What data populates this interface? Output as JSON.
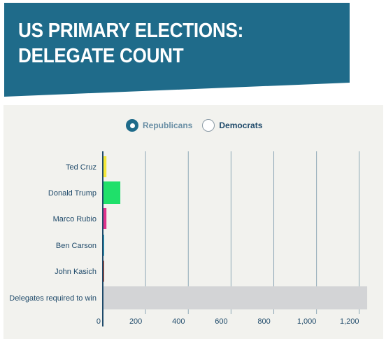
{
  "header": {
    "title_line1": "US PRIMARY ELECTIONS:",
    "title_line2": "DELEGATE COUNT",
    "background_color": "#1f6b8a"
  },
  "toggle": {
    "options": [
      {
        "label": "Republicans",
        "selected": true
      },
      {
        "label": "Democrats",
        "selected": false
      }
    ]
  },
  "chart_data": {
    "type": "bar",
    "orientation": "horizontal",
    "categories": [
      "Ted Cruz",
      "Donald Trump",
      "Marco Rubio",
      "Ben Carson",
      "John Kasich",
      "Delegates required to win"
    ],
    "values": [
      17,
      82,
      17,
      4,
      6,
      1237
    ],
    "colors": [
      "#f4e83a",
      "#1fe06a",
      "#e0348c",
      "#2aa8c8",
      "#c4452a",
      "#d3d4d6"
    ],
    "xlim": [
      0,
      1240
    ],
    "xticks": [
      0,
      200,
      400,
      600,
      800,
      1000,
      1200
    ],
    "xtick_labels": [
      "0",
      "200",
      "400",
      "600",
      "800",
      "1,000",
      "1,200"
    ],
    "title": "",
    "xlabel": "",
    "ylabel": "",
    "grid": "vertical",
    "axis_color": "#1f4a6a",
    "grid_color": "#8ea7b6"
  }
}
